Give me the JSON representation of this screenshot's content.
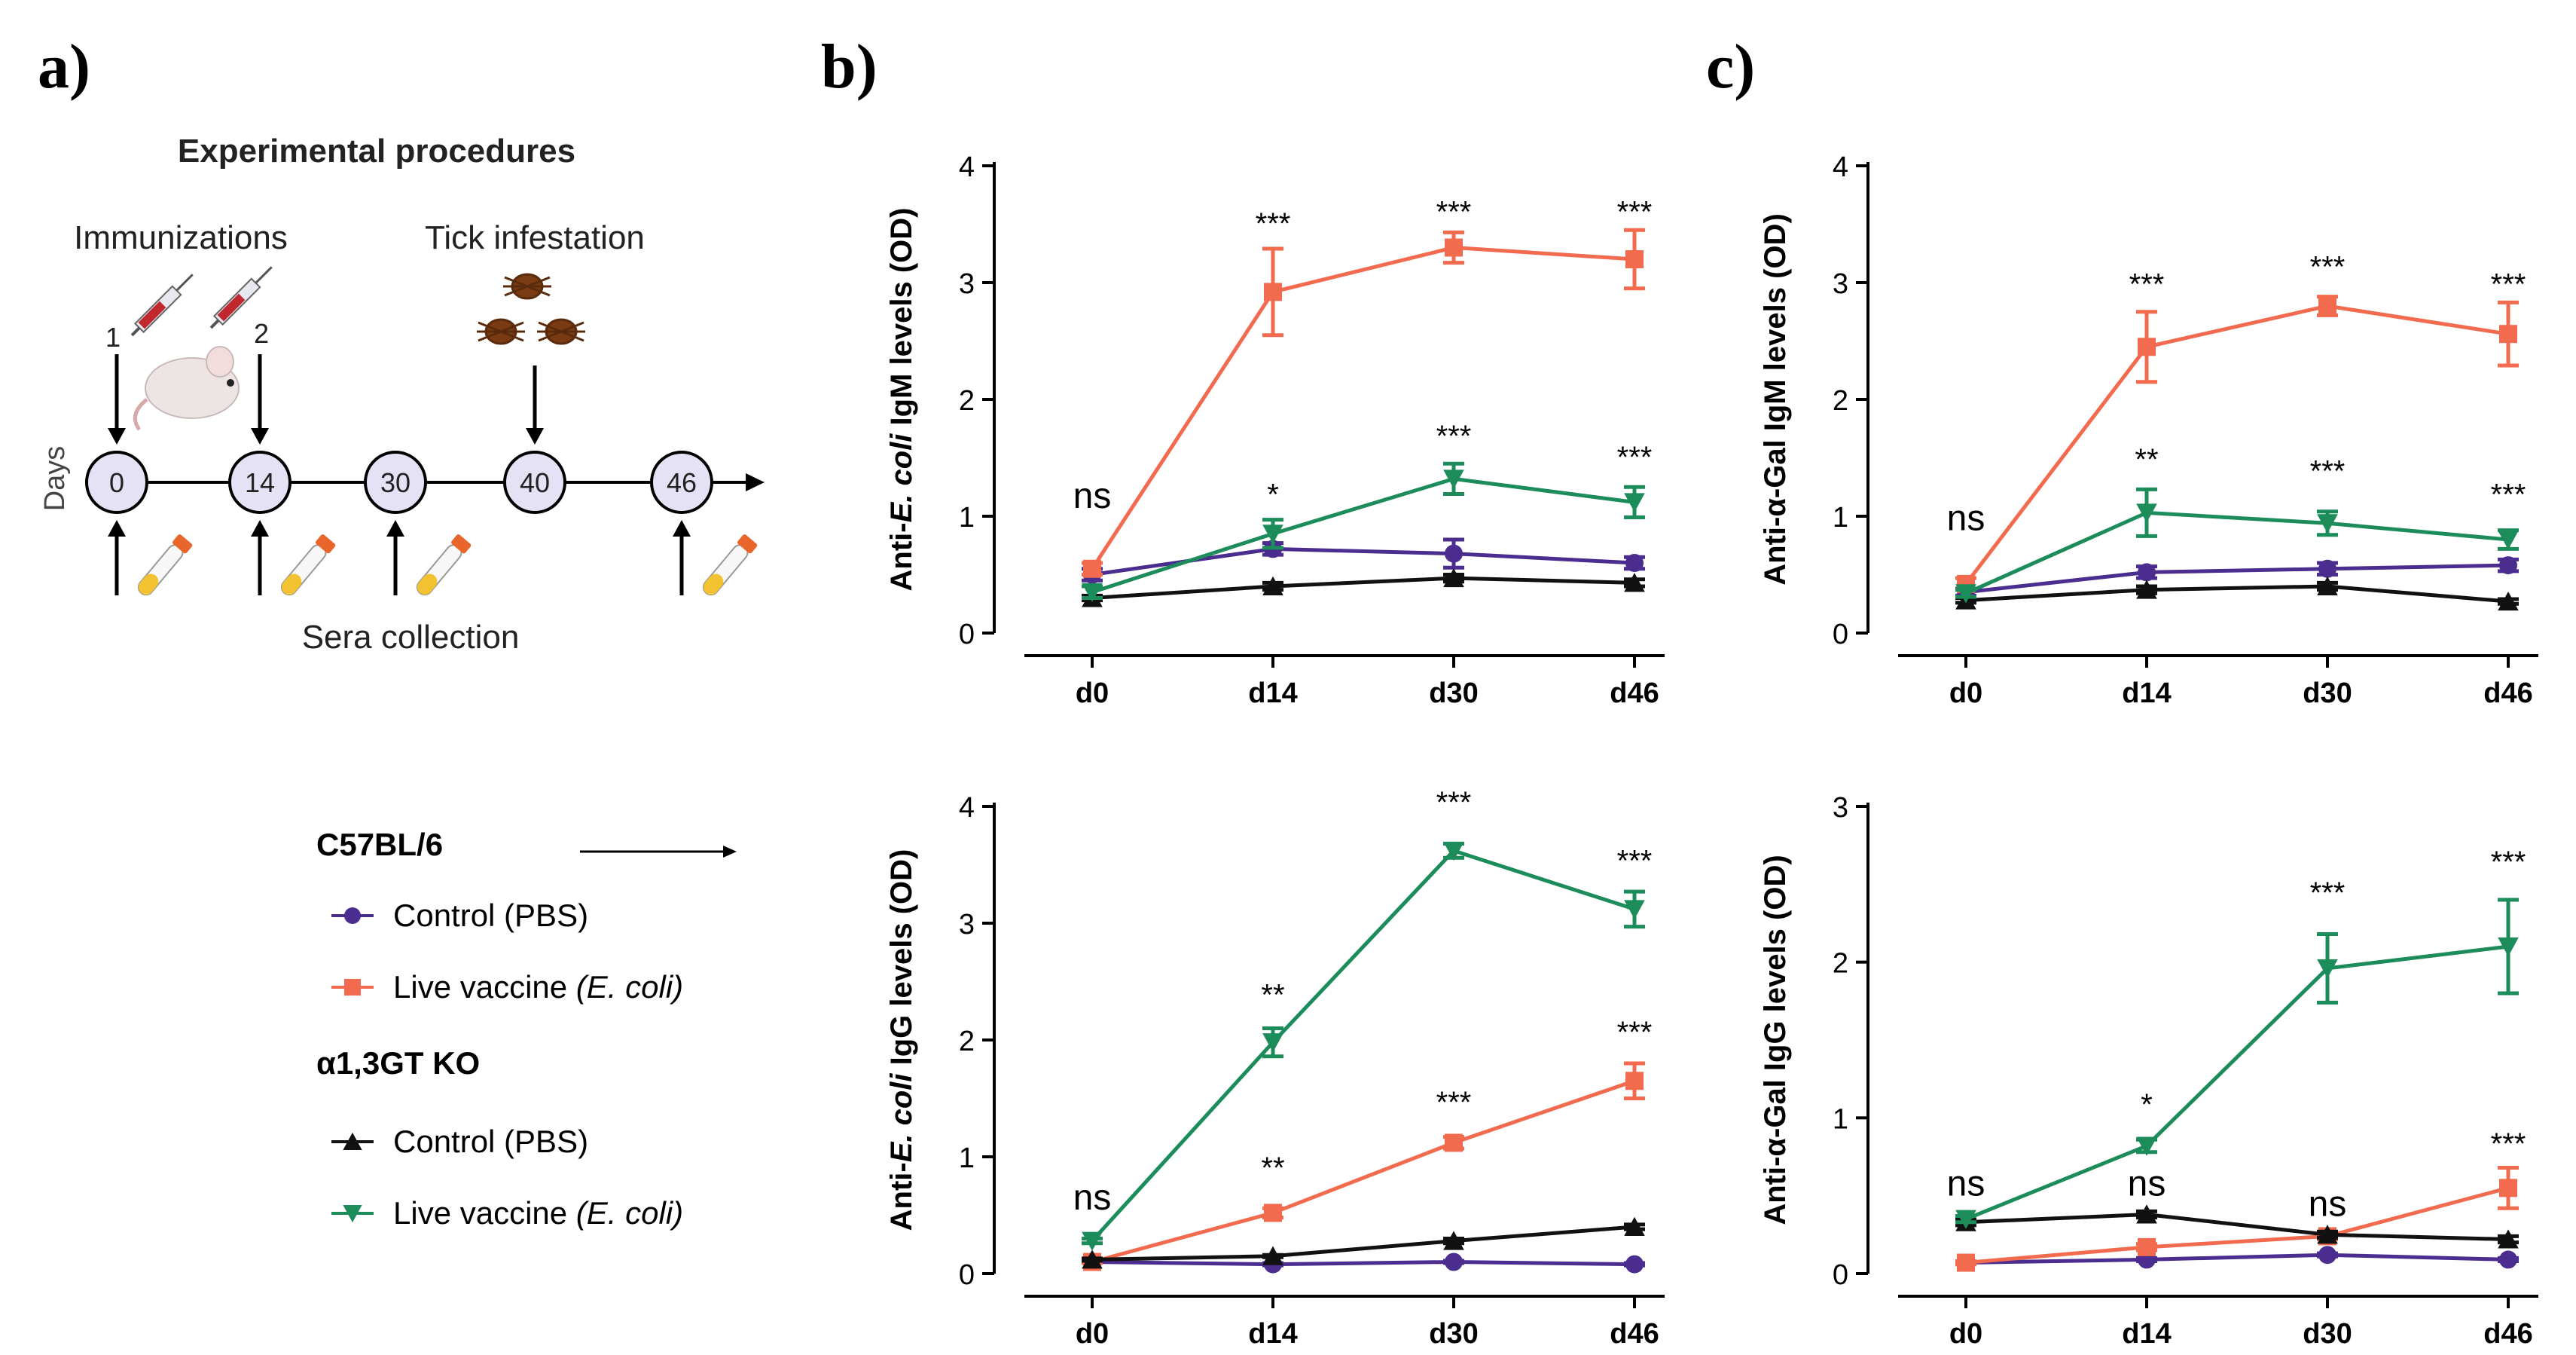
{
  "panel_labels": {
    "a": "a)",
    "b": "b)",
    "c": "c)"
  },
  "schematic": {
    "title": "Experimental procedures",
    "immunizations_label": "Immunizations",
    "tick_label": "Tick infestation",
    "days_label": "Days",
    "sera_label": "Sera collection",
    "injection_numbers": [
      "1",
      "2"
    ],
    "days": [
      "0",
      "14",
      "30",
      "40",
      "46"
    ]
  },
  "legend": {
    "groups": [
      {
        "title": "C57BL/6",
        "items": [
          {
            "label": "Control (PBS)",
            "suffix": "",
            "color": "#4b2c8f",
            "marker": "circle"
          },
          {
            "label": "Live vaccine ",
            "suffix": "(E. coli)",
            "color": "#f26b4f",
            "marker": "square"
          }
        ]
      },
      {
        "title": "α1,3GT KO",
        "items": [
          {
            "label": "Control (PBS)",
            "suffix": "",
            "color": "#111111",
            "marker": "triangle-up"
          },
          {
            "label": "Live vaccine ",
            "suffix": "(E. coli)",
            "color": "#1b8c5a",
            "marker": "triangle-down"
          }
        ]
      }
    ]
  },
  "chart_data": [
    {
      "id": "b-top",
      "type": "line",
      "ylabel_parts": [
        [
          "Anti-",
          "n"
        ],
        [
          "E. coli",
          "i"
        ],
        [
          " IgM levels (OD)",
          "n"
        ]
      ],
      "categories": [
        "d0",
        "d14",
        "d30",
        "d46"
      ],
      "ylim": [
        0,
        4
      ],
      "yticks": [
        0,
        1,
        2,
        3,
        4
      ],
      "series": [
        {
          "name": "C57BL/6 Control (PBS)",
          "color": "#4b2c8f",
          "marker": "circle",
          "values": [
            0.5,
            0.72,
            0.68,
            0.6
          ],
          "errors": [
            0.05,
            0.05,
            0.12,
            0.05
          ]
        },
        {
          "name": "C57BL/6 Live vaccine (E. coli)",
          "color": "#f26b4f",
          "marker": "square",
          "values": [
            0.55,
            2.92,
            3.3,
            3.2
          ],
          "errors": [
            0.05,
            0.37,
            0.13,
            0.25
          ]
        },
        {
          "name": "α1,3GT KO Control (PBS)",
          "color": "#111111",
          "marker": "triangle-up",
          "values": [
            0.3,
            0.4,
            0.47,
            0.43
          ],
          "errors": [
            0.02,
            0.03,
            0.03,
            0.03
          ]
        },
        {
          "name": "α1,3GT KO Live vaccine (E. coli)",
          "color": "#1b8c5a",
          "marker": "triangle-down",
          "values": [
            0.35,
            0.85,
            1.32,
            1.12
          ],
          "errors": [
            0.05,
            0.12,
            0.13,
            0.13
          ]
        }
      ],
      "annotations": [
        {
          "text": "ns",
          "x": 0,
          "y": 1.07,
          "size": "large"
        },
        {
          "text": "***",
          "x": 1,
          "y": 3.42,
          "size": "small"
        },
        {
          "text": "***",
          "x": 2,
          "y": 3.52,
          "size": "small"
        },
        {
          "text": "***",
          "x": 3,
          "y": 3.52,
          "size": "small"
        },
        {
          "text": "*",
          "x": 1,
          "y": 1.1,
          "size": "small"
        },
        {
          "text": "***",
          "x": 2,
          "y": 1.6,
          "size": "small"
        },
        {
          "text": "***",
          "x": 3,
          "y": 1.42,
          "size": "small"
        }
      ]
    },
    {
      "id": "c-top",
      "type": "line",
      "ylabel_parts": [
        [
          "Anti-α-Gal IgM levels (OD)",
          "n"
        ]
      ],
      "categories": [
        "d0",
        "d14",
        "d30",
        "d46"
      ],
      "ylim": [
        0,
        4
      ],
      "yticks": [
        0,
        1,
        2,
        3,
        4
      ],
      "series": [
        {
          "name": "C57BL/6 Control (PBS)",
          "color": "#4b2c8f",
          "marker": "circle",
          "values": [
            0.35,
            0.52,
            0.55,
            0.58
          ],
          "errors": [
            0.03,
            0.05,
            0.05,
            0.05
          ]
        },
        {
          "name": "C57BL/6 Live vaccine (E. coli)",
          "color": "#f26b4f",
          "marker": "square",
          "values": [
            0.42,
            2.45,
            2.8,
            2.56
          ],
          "errors": [
            0.05,
            0.3,
            0.08,
            0.27
          ]
        },
        {
          "name": "α1,3GT KO Control (PBS)",
          "color": "#111111",
          "marker": "triangle-up",
          "values": [
            0.28,
            0.37,
            0.4,
            0.27
          ],
          "errors": [
            0.02,
            0.03,
            0.03,
            0.02
          ]
        },
        {
          "name": "α1,3GT KO Live vaccine (E. coli)",
          "color": "#1b8c5a",
          "marker": "triangle-down",
          "values": [
            0.34,
            1.03,
            0.94,
            0.8
          ],
          "errors": [
            0.03,
            0.2,
            0.1,
            0.08
          ]
        }
      ],
      "annotations": [
        {
          "text": "ns",
          "x": 0,
          "y": 0.88,
          "size": "large"
        },
        {
          "text": "***",
          "x": 1,
          "y": 2.9,
          "size": "small"
        },
        {
          "text": "***",
          "x": 2,
          "y": 3.05,
          "size": "small"
        },
        {
          "text": "***",
          "x": 3,
          "y": 2.9,
          "size": "small"
        },
        {
          "text": "**",
          "x": 1,
          "y": 1.4,
          "size": "small"
        },
        {
          "text": "***",
          "x": 2,
          "y": 1.3,
          "size": "small"
        },
        {
          "text": "***",
          "x": 3,
          "y": 1.1,
          "size": "small"
        }
      ]
    },
    {
      "id": "b-bottom",
      "type": "line",
      "ylabel_parts": [
        [
          "Anti-",
          "n"
        ],
        [
          "E. coli",
          "i"
        ],
        [
          " IgG levels (OD)",
          "n"
        ]
      ],
      "categories": [
        "d0",
        "d14",
        "d30",
        "d46"
      ],
      "ylim": [
        0,
        4
      ],
      "yticks": [
        0,
        1,
        2,
        3,
        4
      ],
      "series": [
        {
          "name": "C57BL/6 Control (PBS)",
          "color": "#4b2c8f",
          "marker": "circle",
          "values": [
            0.1,
            0.08,
            0.1,
            0.08
          ],
          "errors": [
            0.01,
            0.01,
            0.01,
            0.01
          ]
        },
        {
          "name": "C57BL/6 Live vaccine (E. coli)",
          "color": "#f26b4f",
          "marker": "square",
          "values": [
            0.1,
            0.52,
            1.12,
            1.65
          ],
          "errors": [
            0.01,
            0.04,
            0.05,
            0.15
          ]
        },
        {
          "name": "α1,3GT KO Control (PBS)",
          "color": "#111111",
          "marker": "triangle-up",
          "values": [
            0.12,
            0.15,
            0.28,
            0.4
          ],
          "errors": [
            0.01,
            0.01,
            0.02,
            0.02
          ]
        },
        {
          "name": "α1,3GT KO Live vaccine (E. coli)",
          "color": "#1b8c5a",
          "marker": "triangle-down",
          "values": [
            0.28,
            1.98,
            3.62,
            3.12
          ],
          "errors": [
            0.02,
            0.12,
            0.06,
            0.15
          ]
        }
      ],
      "annotations": [
        {
          "text": "ns",
          "x": 0,
          "y": 0.55,
          "size": "large"
        },
        {
          "text": "***",
          "x": 2,
          "y": 3.95,
          "size": "small"
        },
        {
          "text": "***",
          "x": 3,
          "y": 3.45,
          "size": "small"
        },
        {
          "text": "**",
          "x": 1,
          "y": 2.3,
          "size": "small"
        },
        {
          "text": "**",
          "x": 1,
          "y": 0.82,
          "size": "small"
        },
        {
          "text": "***",
          "x": 2,
          "y": 1.38,
          "size": "small"
        },
        {
          "text": "***",
          "x": 3,
          "y": 1.98,
          "size": "small"
        }
      ]
    },
    {
      "id": "c-bottom",
      "type": "line",
      "ylabel_parts": [
        [
          "Anti-α-Gal IgG levels (OD)",
          "n"
        ]
      ],
      "categories": [
        "d0",
        "d14",
        "d30",
        "d46"
      ],
      "ylim": [
        0,
        3
      ],
      "yticks": [
        0,
        1,
        2,
        3
      ],
      "series": [
        {
          "name": "C57BL/6 Control (PBS)",
          "color": "#4b2c8f",
          "marker": "circle",
          "values": [
            0.07,
            0.09,
            0.12,
            0.09
          ],
          "errors": [
            0.01,
            0.01,
            0.01,
            0.01
          ]
        },
        {
          "name": "C57BL/6 Live vaccine (E. coli)",
          "color": "#f26b4f",
          "marker": "square",
          "values": [
            0.07,
            0.17,
            0.24,
            0.55
          ],
          "errors": [
            0.01,
            0.02,
            0.02,
            0.13
          ]
        },
        {
          "name": "α1,3GT KO Control (PBS)",
          "color": "#111111",
          "marker": "triangle-up",
          "values": [
            0.33,
            0.38,
            0.25,
            0.22
          ],
          "errors": [
            0.02,
            0.02,
            0.02,
            0.02
          ]
        },
        {
          "name": "α1,3GT KO Live vaccine (E. coli)",
          "color": "#1b8c5a",
          "marker": "triangle-down",
          "values": [
            0.35,
            0.82,
            1.96,
            2.1
          ],
          "errors": [
            0.02,
            0.04,
            0.22,
            0.3
          ]
        }
      ],
      "annotations": [
        {
          "text": "ns",
          "x": 0,
          "y": 0.5,
          "size": "large"
        },
        {
          "text": "ns",
          "x": 1,
          "y": 0.5,
          "size": "large"
        },
        {
          "text": "ns",
          "x": 2,
          "y": 0.37,
          "size": "large"
        },
        {
          "text": "*",
          "x": 1,
          "y": 1.02,
          "size": "small"
        },
        {
          "text": "***",
          "x": 2,
          "y": 2.38,
          "size": "small"
        },
        {
          "text": "***",
          "x": 3,
          "y": 2.58,
          "size": "small"
        },
        {
          "text": "***",
          "x": 3,
          "y": 0.77,
          "size": "small"
        }
      ]
    }
  ]
}
